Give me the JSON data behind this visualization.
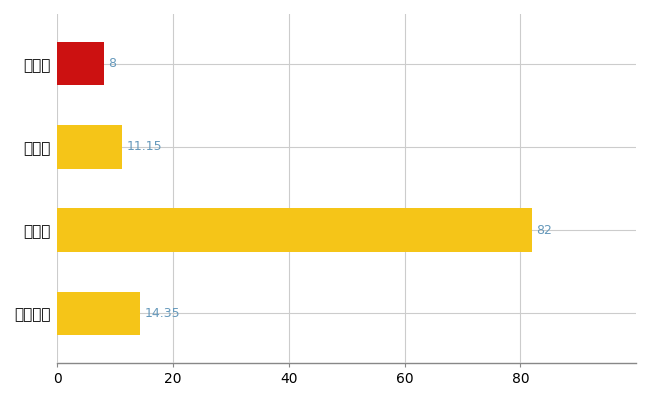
{
  "categories": [
    "深浦町",
    "県平均",
    "県最大",
    "全国平均"
  ],
  "values": [
    8,
    11.15,
    82,
    14.35
  ],
  "bar_colors": [
    "#cc1111",
    "#f5c518",
    "#f5c518",
    "#f5c518"
  ],
  "value_labels": [
    "8",
    "11.15",
    "82",
    "14.35"
  ],
  "label_color": "#6699bb",
  "xlim": [
    0,
    100
  ],
  "xticks": [
    0,
    20,
    40,
    60,
    80
  ],
  "grid_color": "#cccccc",
  "background_color": "#ffffff",
  "bar_height": 0.52
}
